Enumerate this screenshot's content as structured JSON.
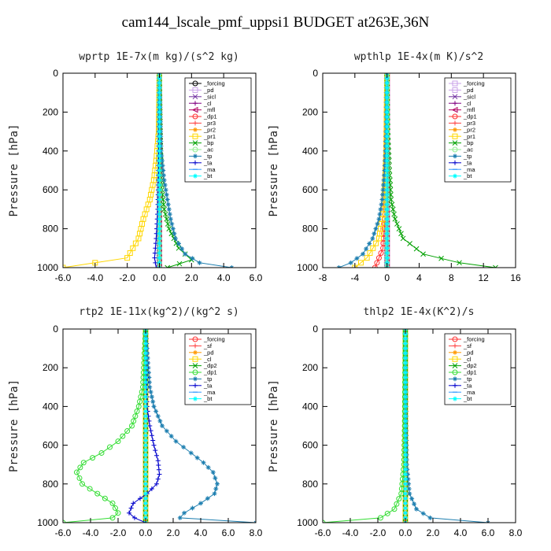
{
  "title": "cam144_lscale_pmf_uppsi1  BUDGET at263E,36N",
  "chart_data": [
    {
      "type": "line",
      "title": "wprtp   1E-7x(m kg)/(s^2 kg)",
      "ylabel": "Pressure [hPa]",
      "xlim": [
        -6,
        6
      ],
      "ylim": [
        1000,
        0
      ],
      "xticks": [
        -6,
        -4,
        -2,
        0,
        2,
        4,
        6
      ],
      "xtick_labels": [
        "-6.0",
        "-4.0",
        "-2.0",
        "0.0",
        "2.0",
        "4.0",
        "6.0"
      ],
      "yticks": [
        0,
        200,
        400,
        600,
        800,
        1000
      ],
      "legend_position": "top-right",
      "series": [
        {
          "name": "_forcing",
          "color": "#000000",
          "marker": "o",
          "x": [
            0,
            0,
            0,
            0,
            0,
            0,
            0,
            0,
            0,
            0,
            0
          ],
          "y": [
            0,
            100,
            200,
            300,
            400,
            500,
            600,
            700,
            800,
            900,
            1000
          ]
        },
        {
          "name": "_pd",
          "color": "#c8a0e8",
          "marker": "s",
          "x": [
            0,
            0,
            0
          ],
          "y": [
            0,
            500,
            1000
          ]
        },
        {
          "name": "_sicl",
          "color": "#7030a0",
          "marker": "x",
          "x": [
            0,
            0,
            0
          ],
          "y": [
            0,
            500,
            1000
          ]
        },
        {
          "name": "_cl",
          "color": "#800080",
          "marker": "+",
          "x": [
            0,
            0,
            0
          ],
          "y": [
            0,
            500,
            1000
          ]
        },
        {
          "name": "_mfl",
          "color": "#b00060",
          "marker": "<",
          "x": [
            0,
            0,
            0
          ],
          "y": [
            0,
            500,
            1000
          ]
        },
        {
          "name": "_dp1",
          "color": "#ff3030",
          "marker": "o",
          "x": [
            0,
            0,
            0
          ],
          "y": [
            0,
            500,
            1000
          ]
        },
        {
          "name": "_pr3",
          "color": "#ff4040",
          "marker": "+",
          "x": [
            0,
            0,
            0
          ],
          "y": [
            0,
            500,
            1000
          ]
        },
        {
          "name": "_pr2",
          "color": "#ff9900",
          "marker": "*",
          "x": [
            0,
            0,
            0
          ],
          "y": [
            0,
            500,
            1000
          ]
        },
        {
          "name": "_pr1",
          "color": "#ffd700",
          "marker": "s",
          "x": [
            0,
            -0.05,
            -0.2,
            -0.35,
            -0.6,
            -1.0,
            -1.3,
            -2.0,
            -6.0
          ],
          "y": [
            0,
            300,
            450,
            550,
            650,
            750,
            850,
            950,
            1000
          ]
        },
        {
          "name": "_bp",
          "color": "#00a000",
          "marker": "x",
          "x": [
            0,
            0.05,
            0.1,
            0.15,
            0.3,
            0.6,
            1.2,
            2.0,
            0.5
          ],
          "y": [
            0,
            300,
            500,
            600,
            700,
            800,
            900,
            960,
            1000
          ]
        },
        {
          "name": "_ac",
          "color": "#90ee90",
          "marker": "o",
          "x": [
            0,
            0,
            0
          ],
          "y": [
            0,
            500,
            1000
          ]
        },
        {
          "name": "_tp",
          "color": "#1e7fb0",
          "marker": "*",
          "x": [
            0,
            0.1,
            0.3,
            0.5,
            0.7,
            1.0,
            1.6,
            2.5,
            4.5
          ],
          "y": [
            0,
            400,
            550,
            650,
            750,
            850,
            930,
            975,
            1000
          ]
        },
        {
          "name": "_ta",
          "color": "#0000cc",
          "marker": "+",
          "x": [
            0,
            -0.05,
            -0.1,
            -0.2,
            -0.3,
            -0.2
          ],
          "y": [
            0,
            500,
            700,
            850,
            950,
            1000
          ]
        },
        {
          "name": "_ma",
          "color": "#3399ff",
          "marker": "-",
          "x": [
            0,
            0,
            0
          ],
          "y": [
            0,
            500,
            1000
          ]
        },
        {
          "name": "_bt",
          "color": "#00ffff",
          "marker": "*",
          "x": [
            0,
            0,
            0
          ],
          "y": [
            0,
            500,
            1000
          ]
        }
      ]
    },
    {
      "type": "line",
      "title": "wpthlp   1E-4x(m K)/s^2",
      "ylabel": "Pressure [hPa]",
      "xlim": [
        -8,
        16
      ],
      "ylim": [
        1000,
        0
      ],
      "xticks": [
        -8,
        -4,
        0,
        4,
        8,
        12,
        16
      ],
      "xtick_labels": [
        "-8",
        "-4",
        "0",
        "4",
        "8",
        "12",
        "16"
      ],
      "yticks": [
        0,
        200,
        400,
        600,
        800,
        1000
      ],
      "legend_position": "top-right",
      "series": [
        {
          "name": "_forcing",
          "color": "#c8a0e8",
          "marker": "s",
          "x": [
            0,
            0,
            0
          ],
          "y": [
            0,
            500,
            1000
          ]
        },
        {
          "name": "_pd",
          "color": "#c8a0e8",
          "marker": "s",
          "x": [
            0,
            0,
            0
          ],
          "y": [
            0,
            500,
            1000
          ]
        },
        {
          "name": "_sicl",
          "color": "#7030a0",
          "marker": "x",
          "x": [
            0,
            0,
            0
          ],
          "y": [
            0,
            500,
            1000
          ]
        },
        {
          "name": "_cl",
          "color": "#800080",
          "marker": "+",
          "x": [
            0,
            0,
            0
          ],
          "y": [
            0,
            500,
            1000
          ]
        },
        {
          "name": "_mfl",
          "color": "#b00060",
          "marker": "<",
          "x": [
            0,
            0,
            0
          ],
          "y": [
            0,
            500,
            1000
          ]
        },
        {
          "name": "_dp1",
          "color": "#ff3030",
          "marker": "o",
          "x": [
            0,
            -0.2,
            -0.5,
            -1.5
          ],
          "y": [
            0,
            700,
            900,
            1000
          ]
        },
        {
          "name": "_pr3",
          "color": "#ff4040",
          "marker": "+",
          "x": [
            0,
            0,
            0
          ],
          "y": [
            0,
            500,
            1000
          ]
        },
        {
          "name": "_pr2",
          "color": "#ff9900",
          "marker": "*",
          "x": [
            0,
            0,
            0
          ],
          "y": [
            0,
            500,
            1000
          ]
        },
        {
          "name": "_pr1",
          "color": "#ffd700",
          "marker": "s",
          "x": [
            0,
            -0.1,
            -0.4,
            -1.0,
            -2.5,
            -4.0
          ],
          "y": [
            0,
            400,
            700,
            850,
            950,
            1000
          ]
        },
        {
          "name": "_bp",
          "color": "#00a000",
          "marker": "x",
          "x": [
            0,
            0.1,
            0.3,
            0.5,
            1.0,
            2.0,
            4.5,
            9.0,
            13.5
          ],
          "y": [
            0,
            300,
            500,
            650,
            750,
            850,
            930,
            975,
            1000
          ]
        },
        {
          "name": "_ac",
          "color": "#90ee90",
          "marker": "o",
          "x": [
            0,
            0,
            0
          ],
          "y": [
            0,
            500,
            1000
          ]
        },
        {
          "name": "_tp",
          "color": "#1e7fb0",
          "marker": "*",
          "x": [
            0,
            -0.1,
            -0.3,
            -0.6,
            -1.0,
            -1.8,
            -3.0,
            -4.5,
            -6.0
          ],
          "y": [
            0,
            300,
            500,
            650,
            750,
            850,
            930,
            975,
            1000
          ]
        },
        {
          "name": "_ta",
          "color": "#0000cc",
          "marker": "+",
          "x": [
            0,
            0,
            0
          ],
          "y": [
            0,
            500,
            1000
          ]
        },
        {
          "name": "_ma",
          "color": "#3399ff",
          "marker": "-",
          "x": [
            0,
            0,
            0
          ],
          "y": [
            0,
            500,
            1000
          ]
        },
        {
          "name": "_bt",
          "color": "#00ffff",
          "marker": "*",
          "x": [
            0,
            0,
            0
          ],
          "y": [
            0,
            500,
            1000
          ]
        }
      ]
    },
    {
      "type": "line",
      "title": "rtp2   1E-11x(kg^2)/(kg^2 s)",
      "ylabel": "Pressure [hPa]",
      "xlim": [
        -6,
        8
      ],
      "ylim": [
        1000,
        0
      ],
      "xticks": [
        -6,
        -4,
        -2,
        0,
        2,
        4,
        6,
        8
      ],
      "xtick_labels": [
        "-6.0",
        "-4.0",
        "-2.0",
        "0.0",
        "2.0",
        "4.0",
        "6.0",
        "8.0"
      ],
      "yticks": [
        0,
        200,
        400,
        600,
        800,
        1000
      ],
      "legend_position": "top-right",
      "series": [
        {
          "name": "_forcing",
          "color": "#ff3030",
          "marker": "o",
          "x": [
            0,
            0,
            0,
            0,
            0,
            0,
            0,
            0,
            0,
            0,
            0
          ],
          "y": [
            0,
            100,
            200,
            300,
            400,
            500,
            600,
            700,
            800,
            900,
            1000
          ]
        },
        {
          "name": "_sf",
          "color": "#ff4040",
          "marker": "+",
          "x": [
            0,
            0,
            0
          ],
          "y": [
            0,
            500,
            1000
          ]
        },
        {
          "name": "_pd",
          "color": "#ff9900",
          "marker": "*",
          "x": [
            0,
            0,
            0
          ],
          "y": [
            0,
            500,
            1000
          ]
        },
        {
          "name": "_cl",
          "color": "#ffd700",
          "marker": "s",
          "x": [
            0,
            0,
            0
          ],
          "y": [
            0,
            500,
            1000
          ]
        },
        {
          "name": "_dp2",
          "color": "#00a000",
          "marker": "x",
          "x": [
            0,
            0,
            0
          ],
          "y": [
            0,
            500,
            1000
          ]
        },
        {
          "name": "_dp1",
          "color": "#33dd33",
          "marker": "o",
          "x": [
            0,
            -0.2,
            -0.5,
            -1.0,
            -2.0,
            -3.2,
            -4.5,
            -5.0,
            -4.6,
            -3.5,
            -2.4,
            -2.0,
            -2.4,
            -6.0
          ],
          "y": [
            0,
            300,
            400,
            500,
            580,
            640,
            690,
            740,
            800,
            850,
            900,
            950,
            975,
            1000
          ]
        },
        {
          "name": "_tp",
          "color": "#1e7fb0",
          "marker": "*",
          "x": [
            0,
            0.3,
            0.6,
            1.2,
            2.2,
            3.3,
            4.2,
            4.9,
            5.2,
            5.0,
            4.0,
            2.8,
            2.5,
            8.0
          ],
          "y": [
            0,
            300,
            400,
            500,
            580,
            640,
            690,
            740,
            800,
            850,
            900,
            950,
            975,
            1000
          ]
        },
        {
          "name": "_ta",
          "color": "#0000cc",
          "marker": "+",
          "x": [
            0,
            0.1,
            0.3,
            0.6,
            0.9,
            1.0,
            0.8,
            0.1,
            -0.9,
            -1.2,
            -0.8,
            0
          ],
          "y": [
            0,
            400,
            500,
            600,
            680,
            750,
            800,
            850,
            900,
            950,
            975,
            1000
          ]
        },
        {
          "name": "_ma",
          "color": "#3399ff",
          "marker": "-",
          "x": [
            0,
            0,
            0
          ],
          "y": [
            0,
            500,
            1000
          ]
        },
        {
          "name": "_bt",
          "color": "#00ffff",
          "marker": "*",
          "x": [
            0,
            0,
            0
          ],
          "y": [
            0,
            500,
            1000
          ]
        }
      ]
    },
    {
      "type": "line",
      "title": "thlp2   1E-4x(K^2)/s",
      "ylabel": "Pressure [hPa]",
      "xlim": [
        -6,
        8
      ],
      "ylim": [
        1000,
        0
      ],
      "xticks": [
        -6,
        -4,
        -2,
        0,
        2,
        4,
        6,
        8
      ],
      "xtick_labels": [
        "-6.0",
        "-4.0",
        "-2.0",
        "0.0",
        "2.0",
        "4.0",
        "6.0",
        "8.0"
      ],
      "yticks": [
        0,
        200,
        400,
        600,
        800,
        1000
      ],
      "legend_position": "top-right",
      "series": [
        {
          "name": "_forcing",
          "color": "#ff3030",
          "marker": "o",
          "x": [
            0,
            0,
            0,
            0,
            0,
            0,
            0,
            0,
            0,
            0,
            0
          ],
          "y": [
            0,
            100,
            200,
            300,
            400,
            500,
            600,
            700,
            800,
            900,
            1000
          ]
        },
        {
          "name": "_sf",
          "color": "#ff4040",
          "marker": "+",
          "x": [
            0,
            0,
            0
          ],
          "y": [
            0,
            500,
            1000
          ]
        },
        {
          "name": "_pd",
          "color": "#ff9900",
          "marker": "*",
          "x": [
            0,
            0,
            0
          ],
          "y": [
            0,
            500,
            1000
          ]
        },
        {
          "name": "_cl",
          "color": "#ffd700",
          "marker": "s",
          "x": [
            0,
            0,
            0
          ],
          "y": [
            0,
            500,
            1000
          ]
        },
        {
          "name": "_dp2",
          "color": "#00a000",
          "marker": "x",
          "x": [
            0,
            0,
            0
          ],
          "y": [
            0,
            500,
            1000
          ]
        },
        {
          "name": "_dp1",
          "color": "#33dd33",
          "marker": "o",
          "x": [
            0,
            -0.05,
            -0.1,
            -0.3,
            -0.8,
            -1.8,
            -6.0
          ],
          "y": [
            0,
            500,
            700,
            850,
            930,
            975,
            1000
          ]
        },
        {
          "name": "_tp",
          "color": "#1e7fb0",
          "marker": "*",
          "x": [
            0,
            0.05,
            0.1,
            0.3,
            0.8,
            1.8,
            6.0
          ],
          "y": [
            0,
            500,
            700,
            850,
            930,
            975,
            1000
          ]
        },
        {
          "name": "_ta",
          "color": "#0000cc",
          "marker": "+",
          "x": [
            0,
            0,
            0
          ],
          "y": [
            0,
            500,
            1000
          ]
        },
        {
          "name": "_ma",
          "color": "#3399ff",
          "marker": "-",
          "x": [
            0,
            0,
            0
          ],
          "y": [
            0,
            500,
            1000
          ]
        },
        {
          "name": "_bt",
          "color": "#00ffff",
          "marker": "*",
          "x": [
            0,
            0,
            0
          ],
          "y": [
            0,
            500,
            1000
          ]
        }
      ]
    }
  ]
}
